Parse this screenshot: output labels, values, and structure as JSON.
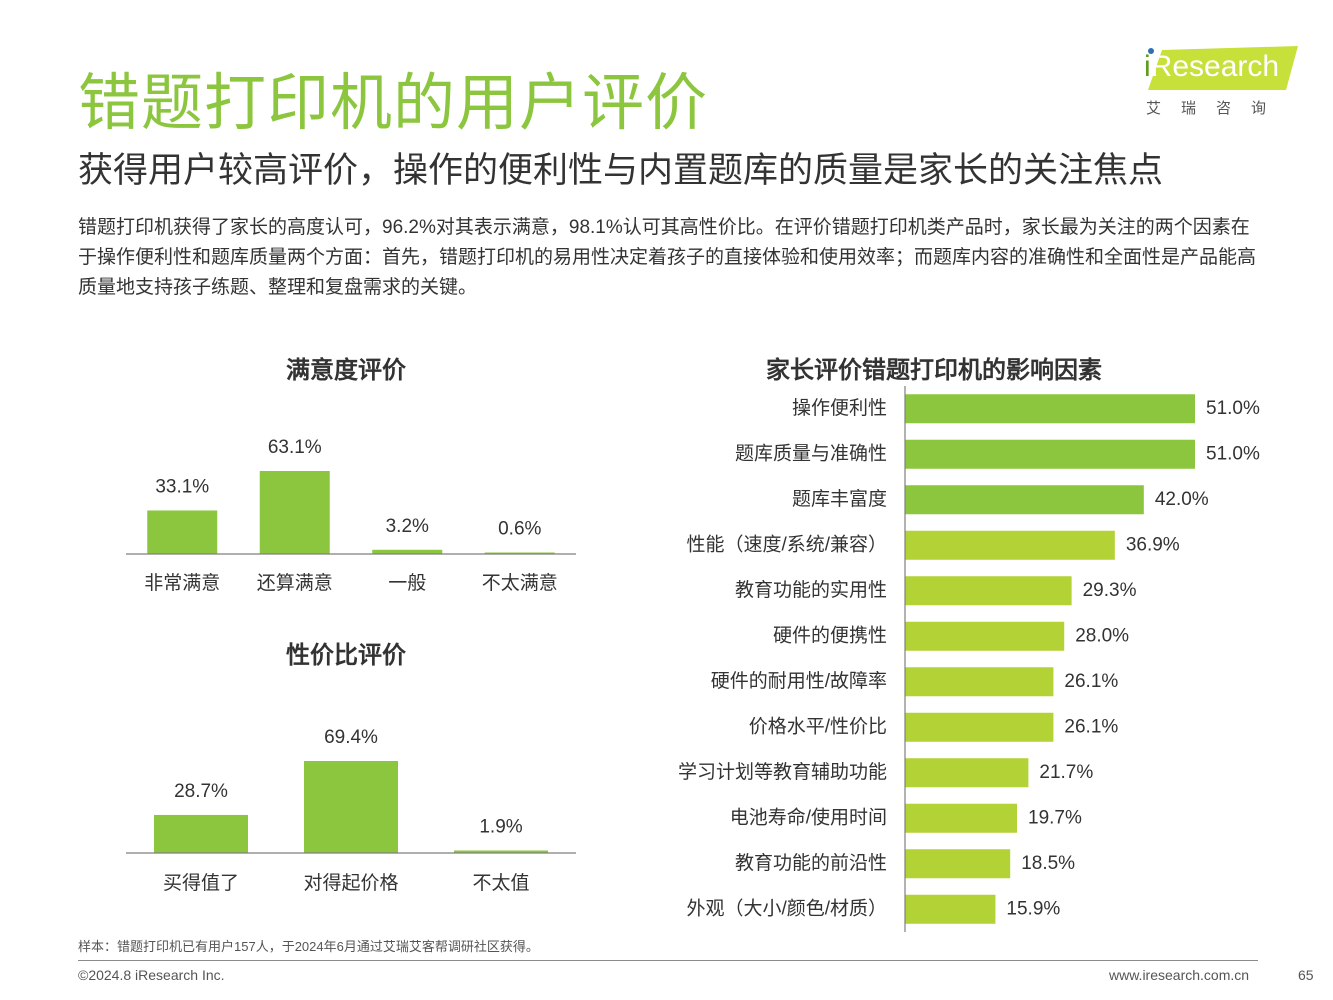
{
  "page": {
    "title": "错题打印机的用户评价",
    "subtitle": "获得用户较高评价，操作的便利性与内置题库的质量是家长的关注焦点",
    "description": "错题打印机获得了家长的高度认可，96.2%对其表示满意，98.1%认可其高性价比。在评价错题打印机类产品时，家长最为关注的两个因素在于操作便利性和题库质量两个方面：首先，错题打印机的易用性决定着孩子的直接体验和使用效率；而题库内容的准确性和全面性是产品能高质量地支持孩子练题、整理和复盘需求的关键。"
  },
  "logo": {
    "brand_i": "i",
    "brand_rest": "Research",
    "cn": "艾瑞咨询",
    "band_color": "#c7e03a",
    "text_color": "#ffffff"
  },
  "colors": {
    "accent": "#8cc63f",
    "bar_dark": "#8cc63f",
    "bar_light": "#b2d235"
  },
  "chart_data": [
    {
      "type": "bar",
      "title": "满意度评价",
      "categories": [
        "非常满意",
        "还算满意",
        "一般",
        "不太满意"
      ],
      "values": [
        33.1,
        63.1,
        3.2,
        0.6
      ],
      "labels": [
        "33.1%",
        "63.1%",
        "3.2%",
        "0.6%"
      ],
      "unit": "%",
      "ylim": [
        0,
        100
      ],
      "grid": false
    },
    {
      "type": "bar",
      "title": "性价比评价",
      "categories": [
        "买得值了",
        "对得起价格",
        "不太值"
      ],
      "values": [
        28.7,
        69.4,
        1.9
      ],
      "labels": [
        "28.7%",
        "69.4%",
        "1.9%"
      ],
      "unit": "%",
      "ylim": [
        0,
        100
      ],
      "grid": false
    },
    {
      "type": "bar",
      "orientation": "horizontal",
      "title": "家长评价错题打印机的影响因素",
      "categories": [
        "操作便利性",
        "题库质量与准确性",
        "题库丰富度",
        "性能（速度/系统/兼容）",
        "教育功能的实用性",
        "硬件的便携性",
        "硬件的耐用性/故障率",
        "价格水平/性价比",
        "学习计划等教育辅助功能",
        "电池寿命/使用时间",
        "教育功能的前沿性",
        "外观（大小/颜色/材质）"
      ],
      "values": [
        51.0,
        51.0,
        42.0,
        36.9,
        29.3,
        28.0,
        26.1,
        26.1,
        21.7,
        19.7,
        18.5,
        15.9
      ],
      "labels": [
        "51.0%",
        "51.0%",
        "42.0%",
        "36.9%",
        "29.3%",
        "28.0%",
        "26.1%",
        "26.1%",
        "21.7%",
        "19.7%",
        "18.5%",
        "15.9%"
      ],
      "highlighted_count": 3,
      "unit": "%",
      "grid": false
    }
  ],
  "footer": {
    "note": "样本：错题打印机已有用户157人，于2024年6月通过艾瑞艾客帮调研社区获得。",
    "copyright": "©2024.8 iResearch Inc.",
    "website": "www.iresearch.com.cn",
    "page_number": "65"
  }
}
